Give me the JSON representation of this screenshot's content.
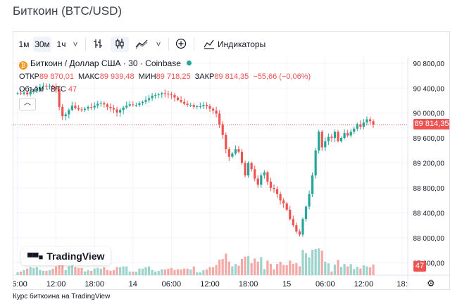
{
  "page_title": "Биткоин (BTC/USD)",
  "toolbar": {
    "intervals": [
      "1м",
      "30м",
      "1ч"
    ],
    "active_interval": "30м",
    "chevron": "˅",
    "indicators_label": "Индикаторы"
  },
  "legend": {
    "coin_letter": "₿",
    "symbol_line": "Биткоин / Доллар США · 30 · Coinbase",
    "ohlc": {
      "open_label": "ОТКР",
      "open": "89 870,01",
      "high_label": "МАКС",
      "high": "89 939,48",
      "low_label": "МИН",
      "low": "89 718,25",
      "close_label": "ЗАКР",
      "close": "89 814,35",
      "change": "−55,66 (−0,06%)"
    },
    "volume_label": "Объём · BTC",
    "volume_value": "47"
  },
  "brand": {
    "mark": "▀▀■",
    "name": "TradingView"
  },
  "caption": "Курс биткоина на TradingView",
  "colors": {
    "up": "#26a69a",
    "down": "#ef5350",
    "up_volume": "#9cd3cb",
    "down_volume": "#f5a9a7",
    "grid": "#f0f3fa"
  },
  "chart_data": {
    "type": "candlestick",
    "title": "Биткоин / Доллар США · 30 · Coinbase",
    "ylim": [
      87400,
      90900
    ],
    "y_ticks": [
      87600,
      88000,
      88400,
      88800,
      89200,
      89600,
      90000,
      90400,
      90800
    ],
    "y_tick_labels": [
      "87 600,00",
      "88 000,00",
      "88 400,00",
      "88 800,00",
      "89 200,00",
      "89 600,00",
      "90 000,00",
      "90 400,00",
      "90 800,00"
    ],
    "x_ticks": [
      {
        "label": "06:00",
        "index": 0
      },
      {
        "label": "12:00",
        "index": 12
      },
      {
        "label": "18:00",
        "index": 24
      },
      {
        "label": "14",
        "index": 36
      },
      {
        "label": "06:00",
        "index": 48
      },
      {
        "label": "12:00",
        "index": 60
      },
      {
        "label": "18:00",
        "index": 72
      },
      {
        "label": "15",
        "index": 84
      },
      {
        "label": "06:00",
        "index": 96
      },
      {
        "label": "12:00",
        "index": 108
      },
      {
        "label": "18:",
        "index": 120
      }
    ],
    "last_price": 89814.35,
    "last_price_label": "89 814,35",
    "last_volume": 47,
    "last_volume_label": "47",
    "close_series": [
      90320,
      90310,
      90330,
      90300,
      90340,
      90360,
      90380,
      90420,
      90440,
      90430,
      90440,
      90420,
      90380,
      90100,
      89950,
      89980,
      90050,
      90120,
      90080,
      90060,
      90050,
      90070,
      90100,
      90090,
      90120,
      90150,
      90160,
      90140,
      90100,
      90080,
      90060,
      90010,
      90050,
      90090,
      90120,
      90140,
      90130,
      90130,
      90160,
      90180,
      90210,
      90240,
      90280,
      90290,
      90300,
      90320,
      90310,
      90300,
      90290,
      90250,
      90210,
      90180,
      90150,
      90130,
      90130,
      90100,
      90110,
      90110,
      90130,
      90110,
      90070,
      90040,
      89990,
      89820,
      89650,
      89420,
      89300,
      89350,
      89420,
      89380,
      89200,
      89000,
      89200,
      89100,
      88950,
      88850,
      89000,
      89050,
      88900,
      88800,
      88780,
      88700,
      88600,
      88550,
      88450,
      88300,
      88200,
      88100,
      88050,
      88300,
      88500,
      88700,
      89000,
      89400,
      89700,
      89450,
      89550,
      89620,
      89600,
      89700,
      89550,
      89600,
      89680,
      89640,
      89700,
      89750,
      89820,
      89780,
      89850,
      89900,
      89870,
      89814
    ]
  }
}
